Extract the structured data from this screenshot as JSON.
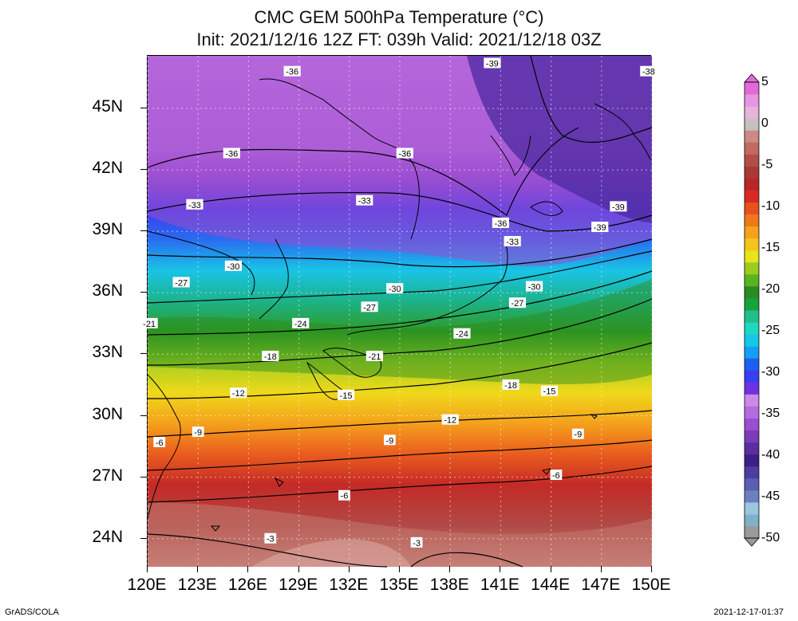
{
  "title": {
    "line1": "CMC GEM 500hPa Temperature (°C)",
    "line2": "Init: 2021/12/16 12Z  FT: 039h  Valid: 2021/12/18 03Z"
  },
  "map": {
    "lat_labels": [
      "45N",
      "42N",
      "39N",
      "36N",
      "33N",
      "30N",
      "27N",
      "24N"
    ],
    "lat_values": [
      45,
      42,
      39,
      36,
      33,
      30,
      27,
      24
    ],
    "lon_labels": [
      "120E",
      "123E",
      "126E",
      "129E",
      "132E",
      "135E",
      "138E",
      "141E",
      "144E",
      "147E",
      "150E"
    ],
    "lon_values": [
      120,
      123,
      126,
      129,
      132,
      135,
      138,
      141,
      144,
      147,
      150
    ],
    "lon_range": [
      120,
      150
    ],
    "lat_range": [
      22.5,
      47.3
    ],
    "contour_labels": [
      {
        "text": "-36",
        "lon": 128.6,
        "lat": 46.8
      },
      {
        "text": "-39",
        "lon": 140.5,
        "lat": 47.2
      },
      {
        "text": "-38",
        "lon": 149.8,
        "lat": 46.8
      },
      {
        "text": "-36",
        "lon": 125.0,
        "lat": 42.8
      },
      {
        "text": "-36",
        "lon": 135.3,
        "lat": 42.8
      },
      {
        "text": "-33",
        "lon": 122.8,
        "lat": 40.3
      },
      {
        "text": "-33",
        "lon": 132.9,
        "lat": 40.5
      },
      {
        "text": "-36",
        "lon": 141.0,
        "lat": 39.4
      },
      {
        "text": "-33",
        "lon": 141.7,
        "lat": 38.5
      },
      {
        "text": "-39",
        "lon": 148.0,
        "lat": 40.2
      },
      {
        "text": "-39",
        "lon": 146.9,
        "lat": 39.2
      },
      {
        "text": "-30",
        "lon": 125.1,
        "lat": 37.3
      },
      {
        "text": "-27",
        "lon": 122.0,
        "lat": 36.5
      },
      {
        "text": "-30",
        "lon": 134.7,
        "lat": 36.2
      },
      {
        "text": "-30",
        "lon": 143.0,
        "lat": 36.3
      },
      {
        "text": "-27",
        "lon": 133.2,
        "lat": 35.3
      },
      {
        "text": "-27",
        "lon": 142.0,
        "lat": 35.5
      },
      {
        "text": "-21",
        "lon": 120.1,
        "lat": 34.5
      },
      {
        "text": "-24",
        "lon": 129.1,
        "lat": 34.5
      },
      {
        "text": "-24",
        "lon": 138.7,
        "lat": 34.0
      },
      {
        "text": "-18",
        "lon": 127.3,
        "lat": 32.9
      },
      {
        "text": "-21",
        "lon": 133.5,
        "lat": 32.9
      },
      {
        "text": "-18",
        "lon": 141.6,
        "lat": 31.5
      },
      {
        "text": "-12",
        "lon": 125.4,
        "lat": 31.1
      },
      {
        "text": "-15",
        "lon": 131.8,
        "lat": 31.0
      },
      {
        "text": "-15",
        "lon": 143.9,
        "lat": 31.2
      },
      {
        "text": "-12",
        "lon": 138.0,
        "lat": 29.8
      },
      {
        "text": "-9",
        "lon": 123.0,
        "lat": 29.2
      },
      {
        "text": "-9",
        "lon": 134.4,
        "lat": 28.8
      },
      {
        "text": "-9",
        "lon": 145.6,
        "lat": 29.1
      },
      {
        "text": "-6",
        "lon": 120.7,
        "lat": 28.7
      },
      {
        "text": "-6",
        "lon": 144.3,
        "lat": 27.1
      },
      {
        "text": "-6",
        "lon": 131.7,
        "lat": 26.1
      },
      {
        "text": "-3",
        "lon": 127.3,
        "lat": 24.0
      },
      {
        "text": "-3",
        "lon": 136.0,
        "lat": 23.8
      }
    ]
  },
  "colorbar": {
    "labels": [
      "5",
      "0",
      "-5",
      "-10",
      "-15",
      "-20",
      "-25",
      "-30",
      "-35",
      "-40",
      "-45",
      "-50"
    ],
    "values": [
      5,
      0,
      -5,
      -10,
      -15,
      -20,
      -25,
      -30,
      -35,
      -40,
      -45,
      -50
    ],
    "colors": [
      "#9a9a9a",
      "#7fb1c8",
      "#9bc6df",
      "#6d7fc0",
      "#5a5fb0",
      "#4b3ea0",
      "#3d1f86",
      "#5a2f9e",
      "#7a3cb8",
      "#9a4fd0",
      "#b56ade",
      "#c98ae8",
      "#6e33e0",
      "#3a3ef0",
      "#1f5ef2",
      "#149ff0",
      "#16c7e8",
      "#20d8c0",
      "#1fbf8a",
      "#16a23e",
      "#2a8c1c",
      "#58b422",
      "#9ccc1e",
      "#e8e41a",
      "#f4c41a",
      "#f4a21a",
      "#f0781c",
      "#e8501e",
      "#d82a22",
      "#b82628",
      "#a83a36",
      "#b24e48",
      "#c06a62",
      "#cc8a84",
      "#c8c0bc",
      "#e6b4da",
      "#e894e2",
      "#e26ad8"
    ]
  },
  "footer": {
    "credit": "GrADS/COLA",
    "timestamp": "2021-12-17-01:37"
  }
}
